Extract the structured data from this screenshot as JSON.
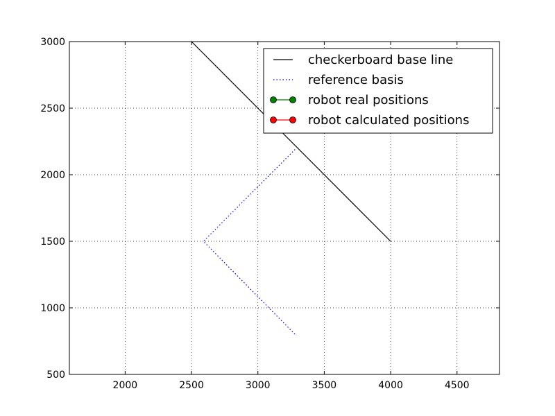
{
  "chart_data": {
    "type": "line",
    "xlim": [
      1580,
      4820
    ],
    "ylim": [
      500,
      3000
    ],
    "xticks": [
      2000,
      2500,
      3000,
      3500,
      4000,
      4500
    ],
    "yticks": [
      500,
      1000,
      1500,
      2000,
      2500,
      3000
    ],
    "grid": true,
    "legend_position": "top-right",
    "series": [
      {
        "name": "checkerboard base line",
        "color": "#000000",
        "style": "solid",
        "marker": "none",
        "points": [
          [
            2500,
            3000
          ],
          [
            4000,
            1500
          ]
        ]
      },
      {
        "name": "reference basis",
        "color": "#0000ff",
        "style": "dotted",
        "marker": "none",
        "points": [
          [
            3280,
            2190
          ],
          [
            2590,
            1500
          ],
          [
            3290,
            790
          ]
        ]
      },
      {
        "name": "robot real positions",
        "color": "#008000",
        "style": "solid",
        "marker": "circle",
        "points": []
      },
      {
        "name": "robot calculated positions",
        "color": "#ff0000",
        "style": "solid",
        "marker": "circle",
        "points": []
      }
    ]
  }
}
